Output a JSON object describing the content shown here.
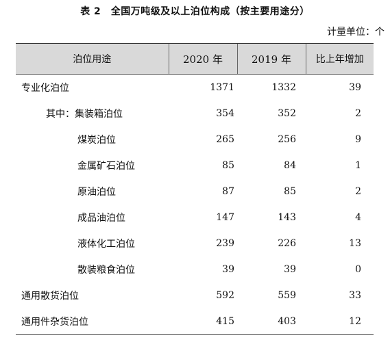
{
  "title": "表 2　全国万吨级及以上泊位构成（按主要用途分）",
  "unit": "计量单位：个",
  "headers": {
    "category": "泊位用途",
    "y2020": "2020 年",
    "y2019": "2019 年",
    "increase": "比上年增加"
  },
  "rows": [
    {
      "name": "专业化泊位",
      "y2020": "1371",
      "y2019": "1332",
      "inc": "39"
    },
    {
      "name": "其中：集装箱泊位",
      "y2020": "354",
      "y2019": "352",
      "inc": "2"
    },
    {
      "name": "煤炭泊位",
      "y2020": "265",
      "y2019": "256",
      "inc": "9"
    },
    {
      "name": "金属矿石泊位",
      "y2020": "85",
      "y2019": "84",
      "inc": "1"
    },
    {
      "name": "原油泊位",
      "y2020": "87",
      "y2019": "85",
      "inc": "2"
    },
    {
      "name": "成品油泊位",
      "y2020": "147",
      "y2019": "143",
      "inc": "4"
    },
    {
      "name": "液体化工泊位",
      "y2020": "239",
      "y2019": "226",
      "inc": "13"
    },
    {
      "name": "散装粮食泊位",
      "y2020": "39",
      "y2019": "39",
      "inc": "0"
    },
    {
      "name": "通用散货泊位",
      "y2020": "592",
      "y2019": "559",
      "inc": "33"
    },
    {
      "name": "通用件杂货泊位",
      "y2020": "415",
      "y2019": "403",
      "inc": "12"
    }
  ]
}
